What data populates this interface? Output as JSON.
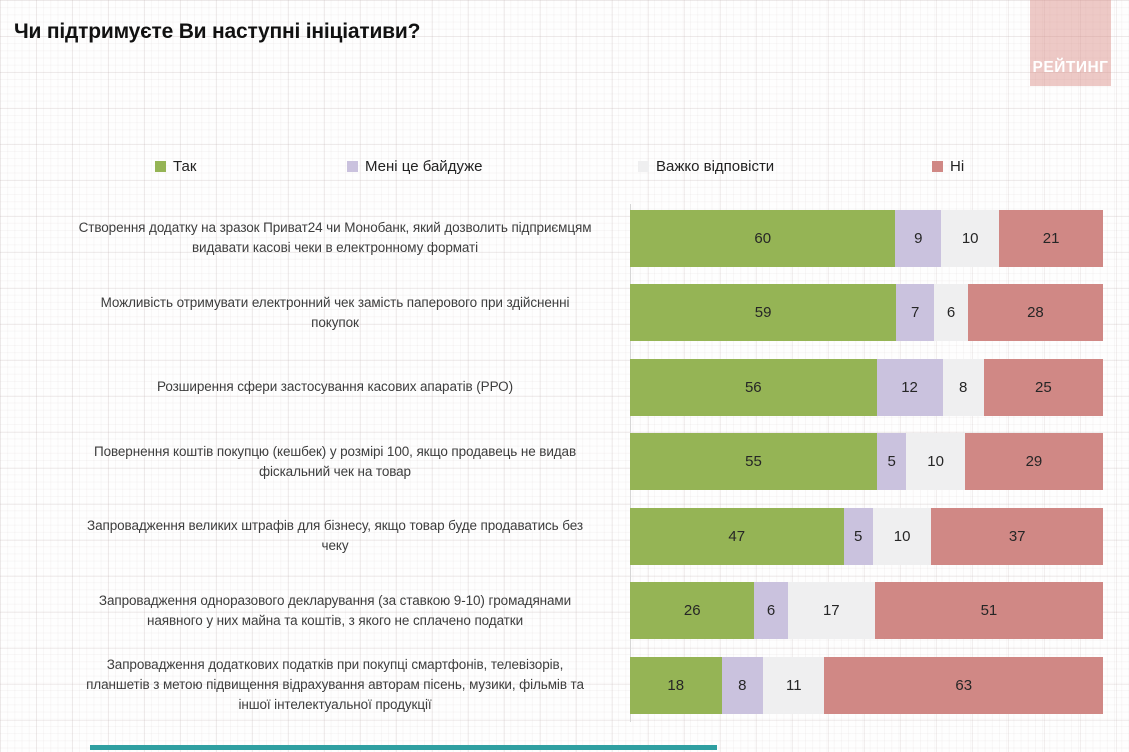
{
  "title": "Чи підтримуєте Ви наступні ініціативи?",
  "logo": {
    "text": "РЕЙТИНГ",
    "bg_color": "#ecc9c8"
  },
  "colors": {
    "yes": "#95b455",
    "indifferent": "#cac2de",
    "hard_to_say": "#efeff0",
    "no": "#d08885",
    "footer_accent": "#2f9fa1"
  },
  "chart_data": {
    "type": "bar",
    "orientation": "horizontal",
    "stacked": true,
    "title": "Чи підтримуєте Ви наступні ініціативи?",
    "legend_position": "top",
    "grid": false,
    "xlim": [
      0,
      100
    ],
    "legend": [
      "Так",
      "Мені це байдуже",
      "Важко відповісти",
      "Ні"
    ],
    "series_colors": [
      "#95b455",
      "#cac2de",
      "#efeff0",
      "#d08885"
    ],
    "categories": [
      "Створення додатку на зразок Приват24 чи Монобанк, який дозволить підприємцям видавати касові чеки в електронному форматі",
      "Можливість отримувати електронний чек замість паперового при здійсненні покупок",
      "Розширення сфери застосування касових апаратів (РРО)",
      "Повернення коштів покупцю (кешбек) у розмірі 100, якщо продавець не видав фіскальний чек на товар",
      "Запровадження великих штрафів для бізнесу, якщо товар буде продаватись без чеку",
      "Запровадження одноразового декларування (за ставкою 9-10) громадянами наявного у них майна та коштів, з якого не сплачено податки",
      "Запровадження додаткових податків при покупці смартфонів, телевізорів, планшетів з метою підвищення відрахування авторам пісень, музики, фільмів та іншої інтелектуальної продукції"
    ],
    "series": [
      {
        "name": "Так",
        "values": [
          60,
          59,
          56,
          55,
          47,
          26,
          18
        ]
      },
      {
        "name": "Мені це байдуже",
        "values": [
          9,
          7,
          12,
          5,
          5,
          6,
          8
        ]
      },
      {
        "name": "Важко відповісти",
        "values": [
          10,
          6,
          8,
          10,
          10,
          17,
          11
        ]
      },
      {
        "name": "Ні",
        "values": [
          21,
          28,
          25,
          29,
          37,
          51,
          63
        ]
      }
    ]
  }
}
